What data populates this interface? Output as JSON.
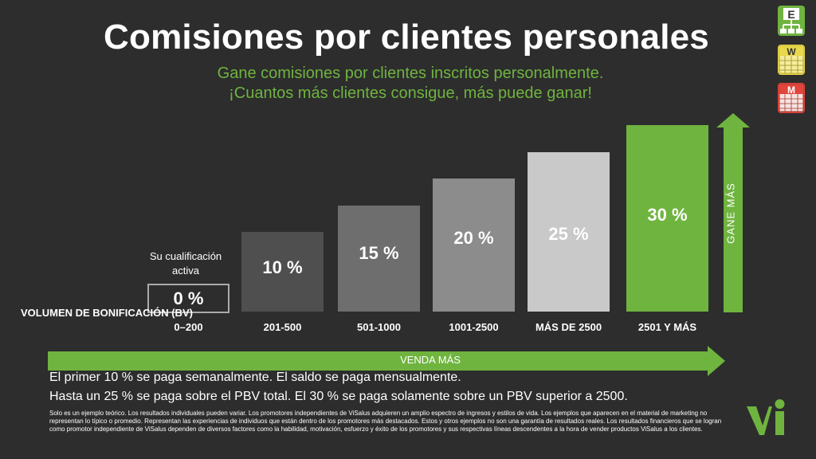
{
  "title": "Comisiones por clientes personales",
  "subtitle_line1": "Gane comisiones por clientes inscritos personalmente.",
  "subtitle_line2": "¡Cuantos más clientes consigue, más puede ganar!",
  "side_icons": [
    {
      "letter": "E",
      "icon": "org-chart-icon",
      "color": "#6fb43f"
    },
    {
      "letter": "W",
      "icon": "weekly-calendar-icon",
      "color": "#e8d84a"
    },
    {
      "letter": "M",
      "icon": "monthly-calendar-icon",
      "color": "#e0463c"
    }
  ],
  "volume_label": "VOLUMEN DE BONIFICACIÓN (BV)",
  "qualification_text": "Su cualificación activa",
  "chart_data": {
    "type": "bar",
    "categories": [
      "0–200",
      "201-500",
      "501-1000",
      "1001-2500",
      "MÁS DE 2500",
      "2501 Y MÁS"
    ],
    "values": [
      0,
      10,
      15,
      20,
      25,
      30
    ],
    "value_labels": [
      "0 %",
      "10 %",
      "15 %",
      "20 %",
      "25 %",
      "30 %"
    ],
    "colors": [
      "#2d2d2d",
      "#4f4f4f",
      "#6e6e6e",
      "#8c8c8c",
      "#c9c9c9",
      "#6fb43f"
    ],
    "ylim": [
      0,
      30
    ]
  },
  "arrow_right_label": "VENDA MÁS",
  "arrow_up_label": "GANE MÁS",
  "note1": "El primer 10 % se paga semanalmente. El saldo se paga mensualmente.",
  "note2": "Hasta un 25 % se paga sobre el PBV total. El 30 % se paga solamente sobre un PBV superior a 2500.",
  "disclaimer": "Solo es un ejemplo teórico. Los resultados individuales pueden variar.  Los promotores independientes de ViSalus adquieren un amplio espectro de ingresos y estilos de vida.  Los ejemplos que aparecen en el material de marketing no representan lo típico o promedio. Representan las experiencias de individuos que están dentro de los promotores más destacados.  Estos y otros ejemplos no son una garantía de resultados reales. Los resultados financieros que se logran como promotor independiente de ViSalus dependen de diversos factores como la habilidad, motivación, esfuerzo y éxito de los promotores y sus respectivas líneas descendentes a la hora de vender productos ViSalus a los clientes.",
  "accent_color": "#6fb43f"
}
